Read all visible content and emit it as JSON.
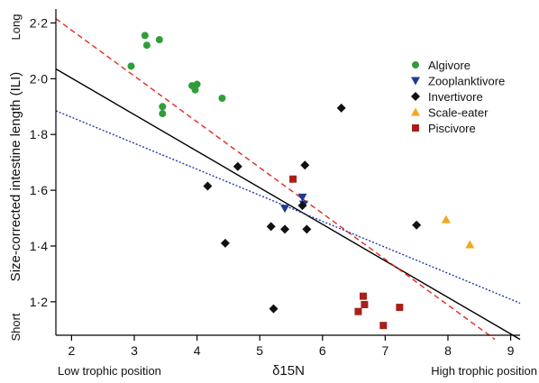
{
  "chart_data": {
    "type": "scatter",
    "xlabel": "δ15N",
    "ylabel": "Size-corrected intestine length (ILI)",
    "x_left_label": "Low trophic position",
    "x_right_label": "High trophic position",
    "y_top_label": "Long",
    "y_bottom_label": "Short",
    "xlim": [
      1.75,
      9.15
    ],
    "ylim": [
      1.08,
      2.25
    ],
    "xticks": [
      2,
      3,
      4,
      5,
      6,
      7,
      8,
      9
    ],
    "yticks": [
      1.2,
      1.4,
      1.6,
      1.8,
      2.0,
      2.2
    ],
    "ytick_labels": [
      "1·2",
      "1·4",
      "1·6",
      "1·8",
      "2·0",
      "2·2"
    ],
    "grid": false,
    "legend_position": "top-right",
    "series": [
      {
        "name": "Algivore",
        "marker": "circle",
        "color": "#2e9e3a",
        "points": [
          [
            2.95,
            2.045
          ],
          [
            3.17,
            2.155
          ],
          [
            3.2,
            2.12
          ],
          [
            3.4,
            2.14
          ],
          [
            3.45,
            1.9
          ],
          [
            3.45,
            1.875
          ],
          [
            3.92,
            1.975
          ],
          [
            3.97,
            1.96
          ],
          [
            4.0,
            1.98
          ],
          [
            4.4,
            1.93
          ]
        ]
      },
      {
        "name": "Zooplanktivore",
        "marker": "triangle-down",
        "color": "#1f3a93",
        "points": [
          [
            5.4,
            1.535
          ],
          [
            5.68,
            1.575
          ],
          [
            5.7,
            1.55
          ]
        ]
      },
      {
        "name": "Invertivore",
        "marker": "diamond",
        "color": "#111111",
        "points": [
          [
            4.17,
            1.615
          ],
          [
            4.45,
            1.41
          ],
          [
            4.65,
            1.685
          ],
          [
            5.18,
            1.47
          ],
          [
            5.22,
            1.175
          ],
          [
            5.4,
            1.46
          ],
          [
            5.68,
            1.545
          ],
          [
            5.72,
            1.69
          ],
          [
            5.75,
            1.46
          ],
          [
            6.3,
            1.895
          ],
          [
            7.5,
            1.475
          ]
        ]
      },
      {
        "name": "Scale-eater",
        "marker": "triangle-up",
        "color": "#f0a81e",
        "points": [
          [
            7.97,
            1.495
          ],
          [
            8.35,
            1.405
          ]
        ]
      },
      {
        "name": "Piscivore",
        "marker": "square",
        "color": "#a8201a",
        "points": [
          [
            5.53,
            1.64
          ],
          [
            6.57,
            1.165
          ],
          [
            6.65,
            1.22
          ],
          [
            6.67,
            1.19
          ],
          [
            6.97,
            1.115
          ],
          [
            7.23,
            1.18
          ]
        ]
      }
    ],
    "lines": [
      {
        "style": "solid",
        "color": "#000000",
        "x": [
          1.75,
          9.15
        ],
        "y": [
          2.035,
          1.065
        ]
      },
      {
        "style": "dashed",
        "color": "#e8281e",
        "x": [
          1.75,
          8.75
        ],
        "y": [
          2.215,
          1.065
        ]
      },
      {
        "style": "dotted",
        "color": "#1f3aa8",
        "x": [
          1.75,
          9.15
        ],
        "y": [
          1.885,
          1.195
        ]
      }
    ]
  }
}
